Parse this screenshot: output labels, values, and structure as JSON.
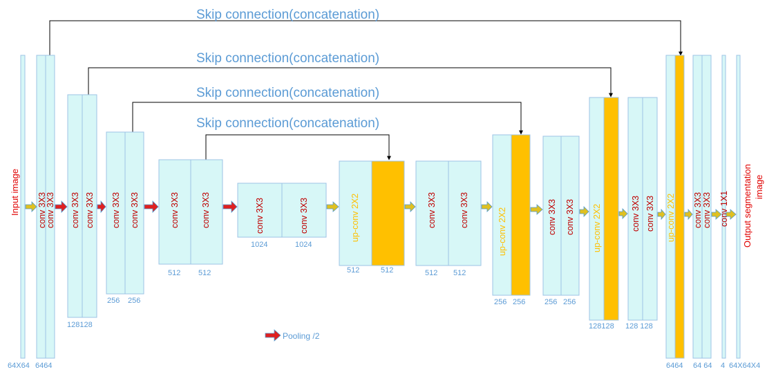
{
  "colors": {
    "block_fill": "#d7f7f7",
    "block_stroke": "#9cc3e6",
    "concat_fill": "#ffc000",
    "conv_text": "#c00000",
    "upconv_text": "#ffc000",
    "io_text": "#e00000",
    "dim_text": "#5b9bd5",
    "skip_text": "#5b9bd5",
    "pool_arrow": "#e02020",
    "conv_arrow": "#e0c020"
  },
  "skip_label": "Skip connection(concatenation)",
  "input_label": "Input image",
  "output_label_line1": "Output segmentation",
  "output_label_line2": "image",
  "legend": {
    "pooling": "Pooling /2"
  },
  "labels": {
    "conv": "conv 3X3",
    "upconv": "up-conv 2X2",
    "conv1x1": "conv 1X1"
  },
  "dims": {
    "d_in": "64X64",
    "d_e1": "6464",
    "d_e2": "128128",
    "d_e3a": "256",
    "d_e3b": "256",
    "d_e4a": "512",
    "d_e4b": "512",
    "d_ba": "1024",
    "d_bb": "1024",
    "d_u1a": "512",
    "d_u1b": "512",
    "d_c1a": "512",
    "d_c1b": "512",
    "d_u2a": "256",
    "d_u2b": "256",
    "d_c2a": "256",
    "d_c2b": "256",
    "d_u3": "128128",
    "d_c3": "128 128",
    "d_u4": "6464",
    "d_c4": "64 64",
    "d_cls": "4",
    "d_out": "64X64X4"
  }
}
